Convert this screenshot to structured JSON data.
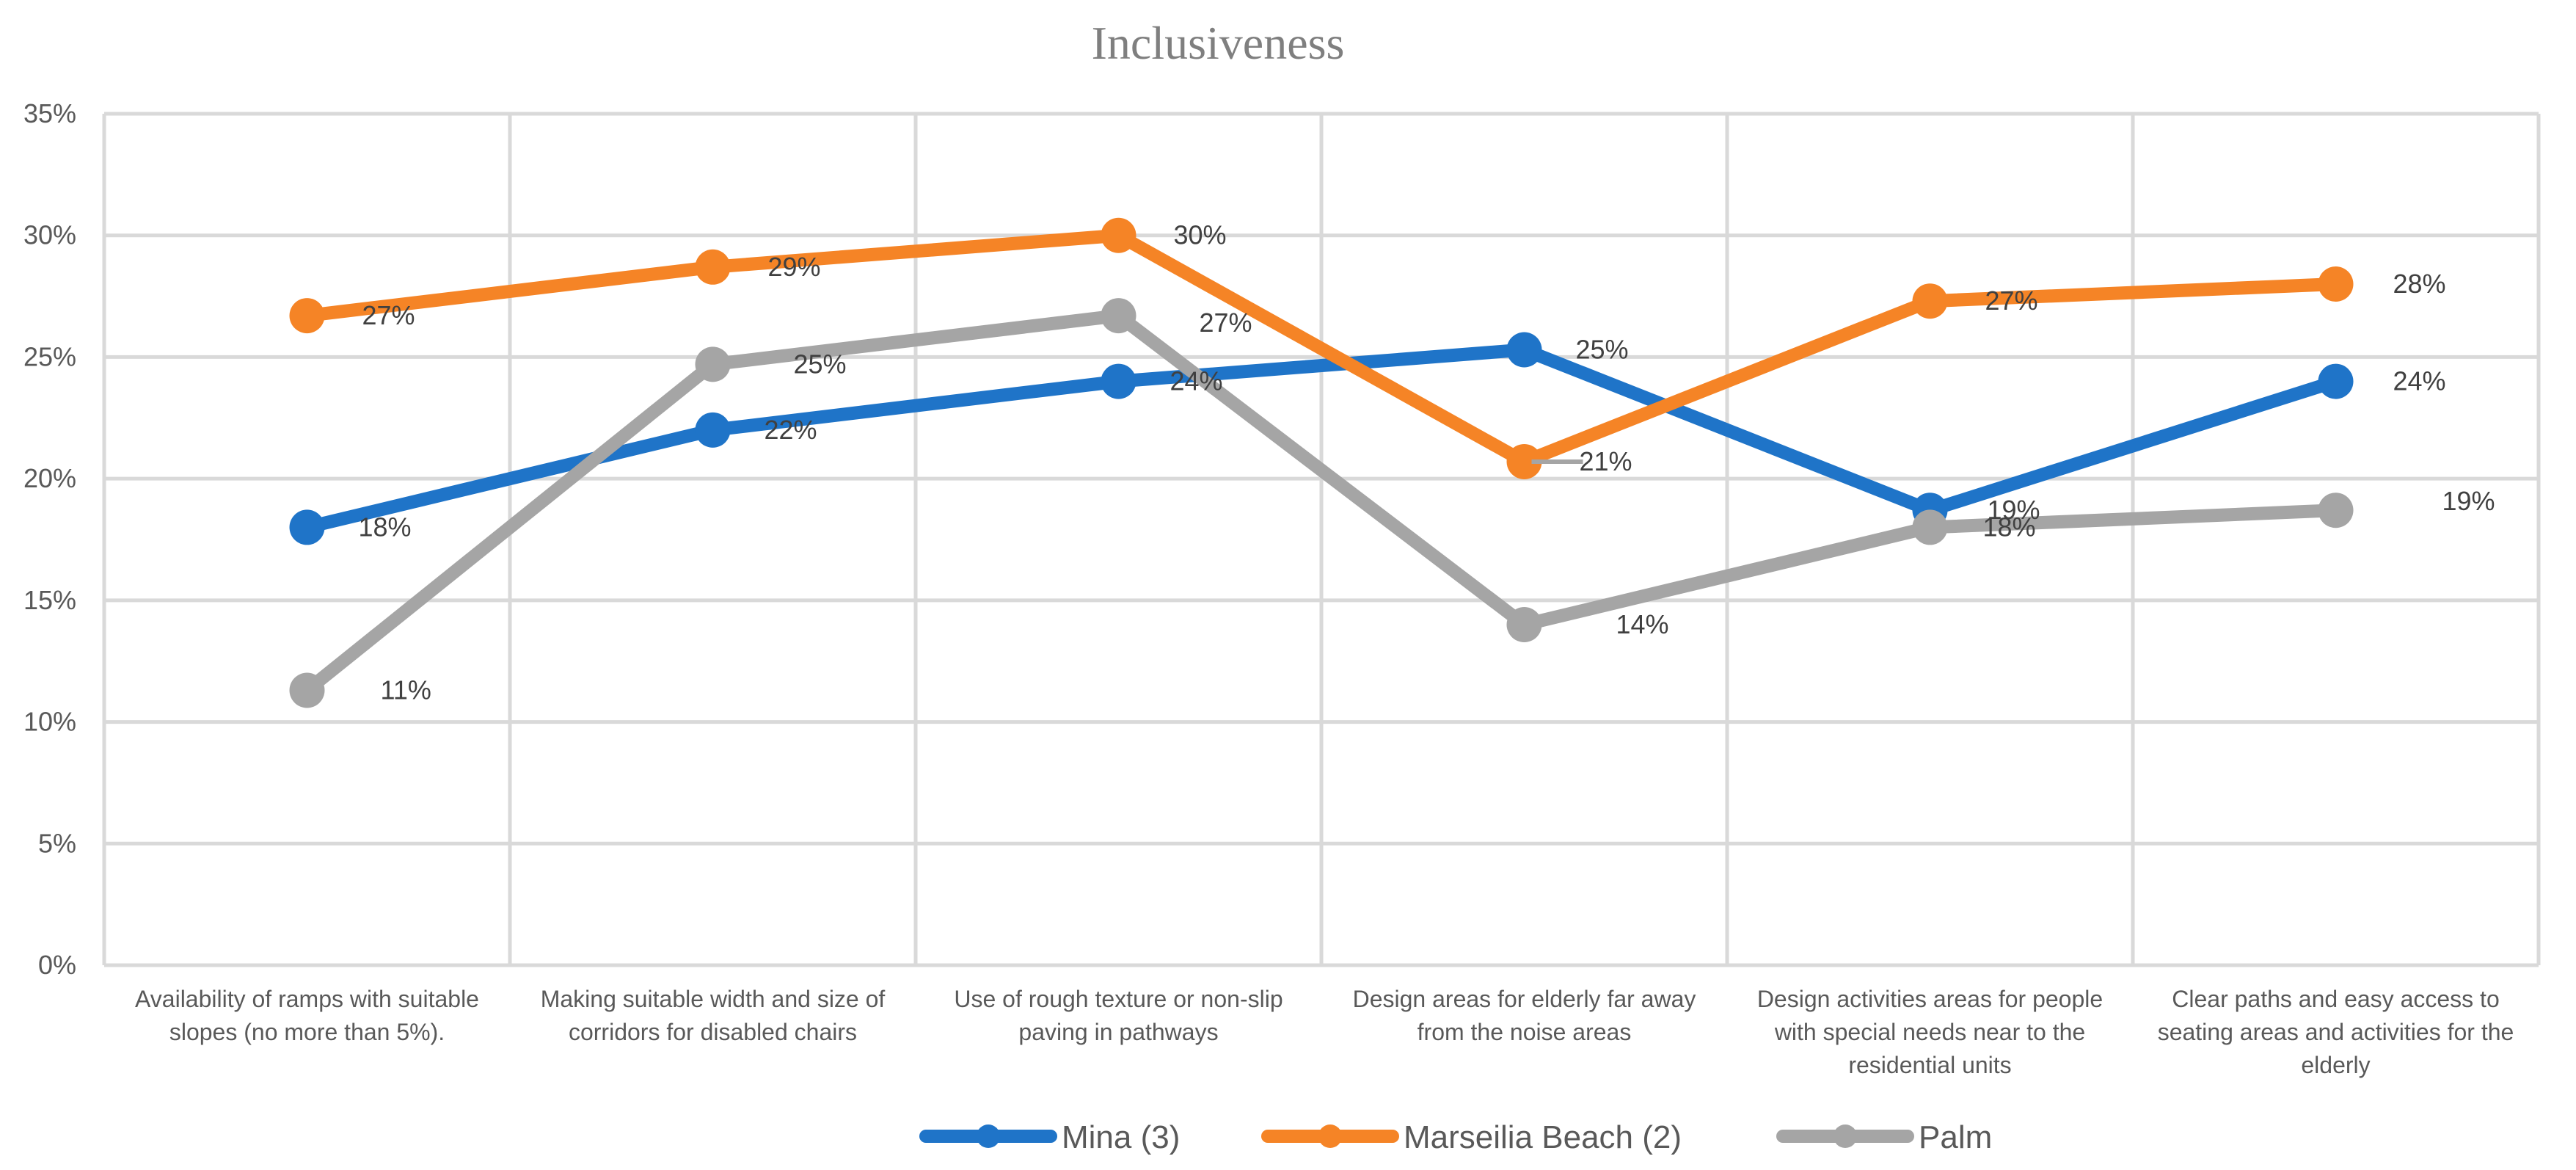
{
  "chart_data": {
    "type": "line",
    "title": "Inclusiveness",
    "xlabel": "",
    "ylabel": "",
    "ylim": [
      0,
      35
    ],
    "y_ticks": [
      "0%",
      "5%",
      "10%",
      "15%",
      "20%",
      "25%",
      "30%",
      "35%"
    ],
    "y_tick_values": [
      0,
      5,
      10,
      15,
      20,
      25,
      30,
      35
    ],
    "grid": true,
    "legend_position": "bottom",
    "categories": [
      [
        "Availability of ramps with suitable",
        "slopes (no more than 5%)."
      ],
      [
        "Making suitable width and size of",
        "corridors for disabled chairs"
      ],
      [
        "Use of rough texture or non-slip",
        "paving in pathways"
      ],
      [
        "Design areas for elderly far away",
        "from the noise areas"
      ],
      [
        "Design activities areas for people",
        "with special needs near to the",
        "residential  units"
      ],
      [
        "Clear paths and easy access to",
        "seating areas and activities for the",
        "elderly"
      ]
    ],
    "series": [
      {
        "name": "Mina (3)",
        "color": "#1f74c8",
        "values": [
          18,
          22,
          24,
          25.3,
          18.7,
          24
        ],
        "labels": [
          "18%",
          "22%",
          "24%",
          "25%",
          "19%",
          "24%"
        ]
      },
      {
        "name": "Marseilia Beach (2)",
        "color": "#f58426",
        "values": [
          26.7,
          28.7,
          30,
          20.7,
          27.3,
          28
        ],
        "labels": [
          "27%",
          "29%",
          "30%",
          "21%",
          "27%",
          "28%"
        ]
      },
      {
        "name": "Palm",
        "color": "#a5a5a5",
        "values": [
          11.3,
          24.7,
          26.7,
          14,
          18,
          18.7
        ],
        "labels": [
          "11%",
          "25%",
          "27%",
          "14%",
          "18%",
          "19%"
        ]
      }
    ]
  }
}
